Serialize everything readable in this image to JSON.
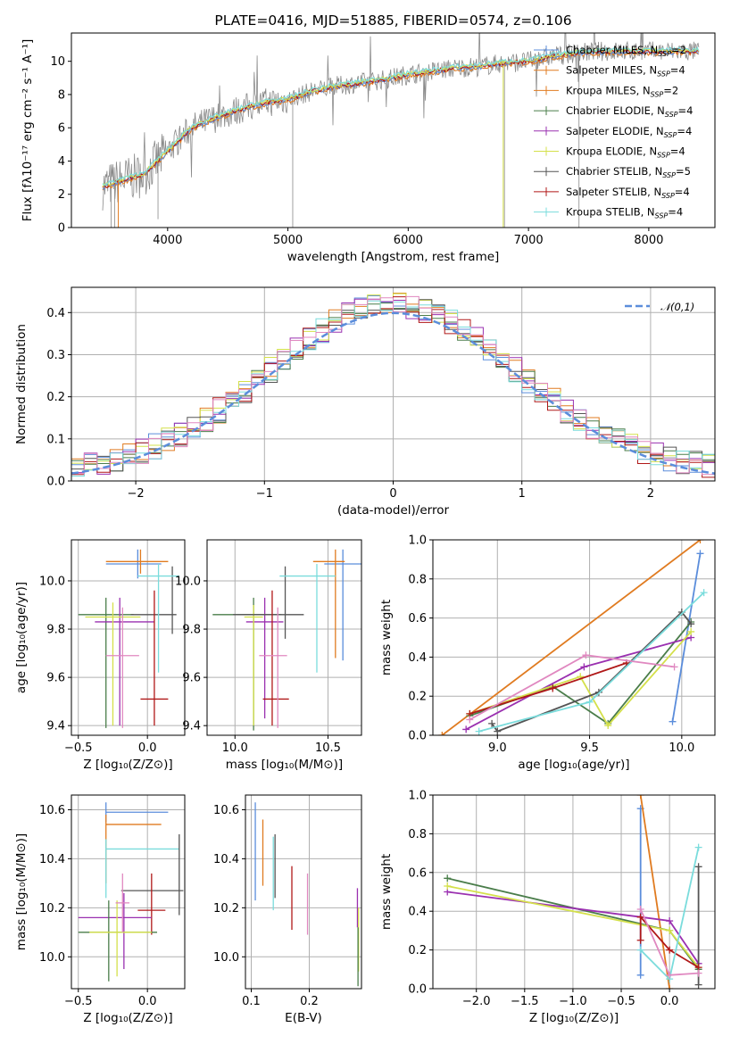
{
  "colors": {
    "Chabrier MILES": "#5b8ddb",
    "Salpeter MILES": "#e07b20",
    "Kroupa MILES": "#e07b20",
    "Chabrier ELODIE": "#4a7d4a",
    "Salpeter ELODIE": "#9a30b0",
    "Kroupa ELODIE": "#d4e04a",
    "Chabrier STELIB": "#555555",
    "Salpeter STELIB": "#b01818",
    "Kroupa STELIB": "#7adcdc",
    "extra_pink": "#e088c0",
    "extra_green": "#70b830",
    "grid": "#b0b0b0",
    "gaussian": "#5b8ddb"
  },
  "chart_data": [
    {
      "id": "spectrum",
      "type": "line",
      "title": "PLATE=0416, MJD=51885, FIBERID=0574, z=0.106",
      "xlabel": "wavelength [Angstrom, rest frame]",
      "ylabel": "Flux [fλ10⁻¹⁷ erg cm⁻² s⁻¹ A⁻¹]",
      "xlim": [
        3200,
        8550
      ],
      "ylim": [
        0,
        11.7
      ],
      "xticks": [
        4000,
        5000,
        6000,
        7000,
        8000
      ],
      "yticks": [
        0,
        2,
        4,
        6,
        8,
        10
      ],
      "continuum_x": [
        3450,
        3600,
        3800,
        4000,
        4200,
        4400,
        4600,
        4800,
        5000,
        5200,
        5400,
        5600,
        5800,
        6000,
        6200,
        6400,
        6600,
        6800,
        7000,
        7200,
        7400,
        7600,
        7800,
        8000,
        8200,
        8400
      ],
      "continuum_y": [
        2.4,
        2.8,
        3.2,
        4.6,
        6.0,
        6.6,
        7.1,
        7.5,
        7.7,
        8.2,
        8.5,
        8.7,
        8.9,
        9.2,
        9.4,
        9.6,
        9.7,
        9.9,
        10.0,
        10.3,
        10.5,
        10.6,
        10.6,
        10.6,
        10.6,
        10.6
      ],
      "legend": [
        "Chabrier MILES, N_SSP=2",
        "Salpeter MILES, N_SSP=4",
        "Kroupa MILES, N_SSP=2",
        "Chabrier ELODIE, N_SSP=4",
        "Salpeter ELODIE, N_SSP=4",
        "Kroupa ELODIE, N_SSP=4",
        "Chabrier STELIB, N_SSP=5",
        "Salpeter STELIB, N_SSP=4",
        "Kroupa STELIB, N_SSP=4"
      ],
      "legend_series": [
        "Chabrier MILES",
        "Salpeter MILES",
        "Kroupa MILES",
        "Chabrier ELODIE",
        "Salpeter ELODIE",
        "Kroupa ELODIE",
        "Chabrier STELIB",
        "Salpeter STELIB",
        "Kroupa STELIB"
      ],
      "legend_location": "top-right"
    },
    {
      "id": "residuals",
      "type": "line",
      "xlabel": "(data-model)/error",
      "ylabel": "Normed distribution",
      "xlim": [
        -2.5,
        2.5
      ],
      "ylim": [
        0,
        0.46
      ],
      "xticks": [
        -2,
        -1,
        0,
        1,
        2
      ],
      "yticks": [
        0.0,
        0.1,
        0.2,
        0.3,
        0.4
      ],
      "gaussian_legend": "𝒩(0,1)",
      "legend_location": "top-right",
      "note": "step histograms of residuals per model plus dashed N(0,1) curve"
    },
    {
      "id": "age_vs_Z",
      "type": "scatter",
      "xlabel": "Z [log₁₀(Z/Z⊙)]",
      "ylabel": "age  [log₁₀(age/yr)]",
      "xlim": [
        -0.55,
        0.27
      ],
      "ylim": [
        9.36,
        10.17
      ],
      "xticks": [
        -0.5,
        0.0
      ],
      "yticks": [
        9.4,
        9.6,
        9.8,
        10.0
      ],
      "points": [
        {
          "series": "Chabrier MILES",
          "x": -0.07,
          "y": 10.07,
          "xerr": [
            0.23,
            0.17
          ],
          "yerr": [
            0.06,
            0.06
          ]
        },
        {
          "series": "Salpeter MILES",
          "x": -0.05,
          "y": 10.08,
          "xerr": [
            0.25,
            0.2
          ],
          "yerr": [
            0.05,
            0.05
          ]
        },
        {
          "series": "Chabrier ELODIE",
          "x": -0.3,
          "y": 9.86,
          "xerr": [
            0.2,
            0.2
          ],
          "yerr": [
            0.47,
            0.07
          ]
        },
        {
          "series": "Salpeter ELODIE",
          "x": -0.2,
          "y": 9.83,
          "xerr": [
            0.18,
            0.25
          ],
          "yerr": [
            0.43,
            0.1
          ]
        },
        {
          "series": "Kroupa ELODIE",
          "x": -0.25,
          "y": 9.85,
          "xerr": [
            0.2,
            0.2
          ],
          "yerr": [
            0.45,
            0.06
          ]
        },
        {
          "series": "Chabrier STELIB",
          "x": 0.18,
          "y": 9.86,
          "xerr": [
            0.3,
            0.03
          ],
          "yerr": [
            0.08,
            0.2
          ]
        },
        {
          "series": "Salpeter STELIB",
          "x": 0.05,
          "y": 9.51,
          "xerr": [
            0.1,
            0.1
          ],
          "yerr": [
            0.11,
            0.45
          ]
        },
        {
          "series": "Kroupa STELIB",
          "x": 0.08,
          "y": 10.02,
          "xerr": [
            0.15,
            0.15
          ],
          "yerr": [
            0.4,
            0.05
          ]
        },
        {
          "series": "extra_pink",
          "x": -0.18,
          "y": 9.69,
          "xerr": [
            0.12,
            0.12
          ],
          "yerr": [
            0.3,
            0.2
          ]
        }
      ]
    },
    {
      "id": "age_vs_mass",
      "type": "scatter",
      "xlabel": "mass [log₁₀(M/M⊙)]",
      "ylabel": "",
      "xlim": [
        9.85,
        10.68
      ],
      "ylim": [
        9.36,
        10.17
      ],
      "xticks": [
        10.0,
        10.5
      ],
      "yticks": [
        9.4,
        9.6,
        9.8,
        10.0
      ],
      "points": [
        {
          "series": "Chabrier MILES",
          "x": 10.58,
          "y": 10.07,
          "xerr": [
            0.1,
            0.1
          ],
          "yerr": [
            0.4,
            0.06
          ]
        },
        {
          "series": "Salpeter MILES",
          "x": 10.54,
          "y": 10.08,
          "xerr": [
            0.12,
            0.05
          ],
          "yerr": [
            0.4,
            0.05
          ]
        },
        {
          "series": "Chabrier ELODIE",
          "x": 10.1,
          "y": 9.86,
          "xerr": [
            0.22,
            0.15
          ],
          "yerr": [
            0.48,
            0.07
          ]
        },
        {
          "series": "Salpeter ELODIE",
          "x": 10.16,
          "y": 9.83,
          "xerr": [
            0.1,
            0.1
          ],
          "yerr": [
            0.4,
            0.1
          ]
        },
        {
          "series": "Kroupa ELODIE",
          "x": 10.1,
          "y": 9.85,
          "xerr": [
            0.05,
            0.05
          ],
          "yerr": [
            0.45,
            0.05
          ]
        },
        {
          "series": "Chabrier STELIB",
          "x": 10.27,
          "y": 9.86,
          "xerr": [
            0.28,
            0.1
          ],
          "yerr": [
            0.1,
            0.2
          ]
        },
        {
          "series": "Salpeter STELIB",
          "x": 10.2,
          "y": 9.51,
          "xerr": [
            0.05,
            0.09
          ],
          "yerr": [
            0.11,
            0.45
          ]
        },
        {
          "series": "Kroupa STELIB",
          "x": 10.44,
          "y": 10.02,
          "xerr": [
            0.2,
            0.1
          ],
          "yerr": [
            0.4,
            0.05
          ]
        },
        {
          "series": "extra_pink",
          "x": 10.23,
          "y": 9.69,
          "xerr": [
            0.1,
            0.05
          ],
          "yerr": [
            0.3,
            0.2
          ]
        }
      ]
    },
    {
      "id": "weight_vs_age",
      "type": "line",
      "xlabel": "age  [log₁₀(age/yr)]",
      "ylabel": "mass weight",
      "xlim": [
        8.65,
        10.18
      ],
      "ylim": [
        0,
        1.0
      ],
      "xticks": [
        9.0,
        9.5,
        10.0
      ],
      "yticks": [
        0.0,
        0.2,
        0.4,
        0.6,
        0.8,
        1.0
      ],
      "series": [
        {
          "name": "Chabrier MILES",
          "x": [
            9.95,
            10.1
          ],
          "y": [
            0.07,
            0.93
          ]
        },
        {
          "name": "Salpeter MILES",
          "x": [
            8.7,
            10.1
          ],
          "y": [
            0.0,
            1.0
          ]
        },
        {
          "name": "Chabrier ELODIE",
          "x": [
            8.85,
            9.3,
            9.6,
            10.05
          ],
          "y": [
            0.1,
            0.25,
            0.06,
            0.58
          ]
        },
        {
          "name": "Salpeter ELODIE",
          "x": [
            8.83,
            9.47,
            10.05
          ],
          "y": [
            0.03,
            0.35,
            0.5
          ]
        },
        {
          "name": "Kroupa ELODIE",
          "x": [
            8.85,
            9.45,
            9.6,
            10.05
          ],
          "y": [
            0.11,
            0.3,
            0.05,
            0.53
          ]
        },
        {
          "name": "Chabrier STELIB",
          "x": [
            8.97,
            9.0,
            9.55,
            10.0,
            10.05
          ],
          "y": [
            0.06,
            0.02,
            0.22,
            0.63,
            0.57
          ]
        },
        {
          "name": "Salpeter STELIB",
          "x": [
            8.85,
            9.3,
            9.7
          ],
          "y": [
            0.11,
            0.24,
            0.37
          ]
        },
        {
          "name": "Kroupa STELIB",
          "x": [
            8.9,
            9.5,
            10.12
          ],
          "y": [
            0.02,
            0.17,
            0.73
          ]
        },
        {
          "name": "extra_pink",
          "x": [
            8.85,
            9.48,
            9.96
          ],
          "y": [
            0.08,
            0.41,
            0.35
          ]
        }
      ]
    },
    {
      "id": "mass_vs_Z",
      "type": "scatter",
      "xlabel": "Z [log₁₀(Z/Z⊙)]",
      "ylabel": "mass [log₁₀(M/M⊙)]",
      "xlim": [
        -0.55,
        0.27
      ],
      "ylim": [
        9.87,
        10.66
      ],
      "xticks": [
        -0.5,
        0.0
      ],
      "yticks": [
        10.0,
        10.2,
        10.4,
        10.6
      ],
      "points": [
        {
          "series": "Chabrier MILES",
          "x": -0.3,
          "y": 10.59,
          "xerr": [
            0.0,
            0.45
          ],
          "yerr": [
            0.04,
            0.04
          ]
        },
        {
          "series": "Salpeter MILES",
          "x": -0.3,
          "y": 10.54,
          "xerr": [
            0.0,
            0.4
          ],
          "yerr": [
            0.24,
            0.04
          ]
        },
        {
          "series": "Kroupa STELIB",
          "x": -0.3,
          "y": 10.44,
          "xerr": [
            0.0,
            0.53
          ],
          "yerr": [
            0.2,
            0.04
          ]
        },
        {
          "series": "Chabrier STELIB",
          "x": 0.23,
          "y": 10.27,
          "xerr": [
            0.42,
            0.03
          ],
          "yerr": [
            0.1,
            0.23
          ]
        },
        {
          "series": "Salpeter STELIB",
          "x": 0.03,
          "y": 10.19,
          "xerr": [
            0.1,
            0.1
          ],
          "yerr": [
            0.1,
            0.15
          ]
        },
        {
          "series": "Salpeter ELODIE",
          "x": -0.17,
          "y": 10.16,
          "xerr": [
            0.33,
            0.2
          ],
          "yerr": [
            0.21,
            0.1
          ]
        },
        {
          "series": "Chabrier ELODIE",
          "x": -0.28,
          "y": 10.1,
          "xerr": [
            0.22,
            0.35
          ],
          "yerr": [
            0.2,
            0.13
          ]
        },
        {
          "series": "Kroupa ELODIE",
          "x": -0.22,
          "y": 10.1,
          "xerr": [
            0.2,
            0.25
          ],
          "yerr": [
            0.18,
            0.13
          ]
        },
        {
          "series": "extra_pink",
          "x": -0.18,
          "y": 10.22,
          "xerr": [
            0.05,
            0.05
          ],
          "yerr": [
            0.12,
            0.12
          ]
        }
      ]
    },
    {
      "id": "mass_vs_ebv",
      "type": "scatter",
      "xlabel": "E(B-V)",
      "ylabel": "",
      "xlim": [
        0.09,
        0.29
      ],
      "ylim": [
        9.87,
        10.66
      ],
      "xticks": [
        0.1,
        0.2
      ],
      "yticks": [
        10.0,
        10.2,
        10.4,
        10.6
      ],
      "points": [
        {
          "series": "Chabrier MILES",
          "x": 0.107,
          "y": 10.43,
          "yerr": [
            0.2,
            0.2
          ]
        },
        {
          "series": "Salpeter MILES",
          "x": 0.12,
          "y": 10.42,
          "yerr": [
            0.13,
            0.14
          ]
        },
        {
          "series": "Kroupa STELIB",
          "x": 0.138,
          "y": 10.36,
          "yerr": [
            0.17,
            0.13
          ]
        },
        {
          "series": "Chabrier STELIB",
          "x": 0.141,
          "y": 10.37,
          "yerr": [
            0.13,
            0.13
          ]
        },
        {
          "series": "Salpeter STELIB",
          "x": 0.17,
          "y": 10.24,
          "yerr": [
            0.13,
            0.13
          ]
        },
        {
          "series": "extra_pink",
          "x": 0.197,
          "y": 10.22,
          "yerr": [
            0.13,
            0.12
          ]
        },
        {
          "series": "Salpeter ELODIE",
          "x": 0.283,
          "y": 10.2,
          "yerr": [
            0.08,
            0.08
          ]
        },
        {
          "series": "Kroupa ELODIE",
          "x": 0.285,
          "y": 10.07,
          "yerr": [
            0.13,
            0.13
          ]
        },
        {
          "series": "Chabrier ELODIE",
          "x": 0.284,
          "y": 10.0,
          "yerr": [
            0.12,
            0.12
          ]
        }
      ]
    },
    {
      "id": "weight_vs_Z",
      "type": "line",
      "xlabel": "Z [log₁₀(Z/Z⊙)]",
      "ylabel": "mass weight",
      "xlim": [
        -2.45,
        0.47
      ],
      "ylim": [
        0,
        1.0
      ],
      "xticks": [
        -2.0,
        -1.5,
        -1.0,
        -0.5,
        0.0
      ],
      "yticks": [
        0.0,
        0.2,
        0.4,
        0.6,
        0.8,
        1.0
      ],
      "series": [
        {
          "name": "Chabrier MILES",
          "x": [
            -0.3,
            -0.3
          ],
          "y": [
            0.07,
            0.93
          ]
        },
        {
          "name": "Salpeter MILES",
          "x": [
            -0.3,
            0.0
          ],
          "y": [
            1.0,
            0.0
          ]
        },
        {
          "name": "Chabrier ELODIE",
          "x": [
            -2.3,
            0.0,
            0.3
          ],
          "y": [
            0.57,
            0.3,
            0.1
          ]
        },
        {
          "name": "Salpeter ELODIE",
          "x": [
            -2.3,
            -0.3,
            0.0,
            0.3
          ],
          "y": [
            0.5,
            0.37,
            0.35,
            0.13
          ]
        },
        {
          "name": "Kroupa ELODIE",
          "x": [
            -2.3,
            0.0,
            0.3
          ],
          "y": [
            0.53,
            0.3,
            0.11
          ]
        },
        {
          "name": "Chabrier STELIB",
          "x": [
            0.3,
            0.3
          ],
          "y": [
            0.02,
            0.63
          ]
        },
        {
          "name": "Salpeter STELIB",
          "x": [
            -0.3,
            -0.3,
            0.0,
            0.3
          ],
          "y": [
            0.25,
            0.37,
            0.2,
            0.11
          ]
        },
        {
          "name": "Kroupa STELIB",
          "x": [
            -0.3,
            0.0,
            0.3
          ],
          "y": [
            0.2,
            0.05,
            0.73
          ]
        },
        {
          "name": "extra_pink",
          "x": [
            -0.3,
            0.0,
            0.3
          ],
          "y": [
            0.41,
            0.07,
            0.08
          ]
        }
      ]
    }
  ]
}
